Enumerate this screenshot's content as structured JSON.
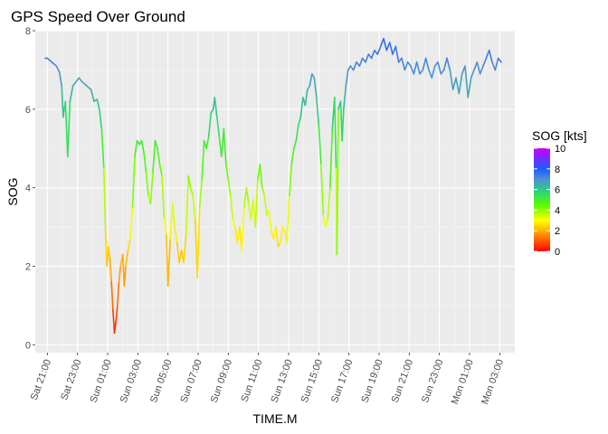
{
  "chart_data": {
    "type": "line",
    "title": "GPS Speed Over Ground",
    "xlabel": "TIME.M",
    "ylabel": "SOG",
    "x_unit": "hours",
    "xlim": [
      -0.8,
      31.0
    ],
    "ylim": [
      -0.2,
      8.0
    ],
    "y_ticks": [
      0,
      2,
      4,
      6,
      8
    ],
    "x_ticks": [
      {
        "h": 0,
        "label": "Sat 21:00"
      },
      {
        "h": 2,
        "label": "Sat 23:00"
      },
      {
        "h": 4,
        "label": "Sun 01:00"
      },
      {
        "h": 6,
        "label": "Sun 03:00"
      },
      {
        "h": 8,
        "label": "Sun 05:00"
      },
      {
        "h": 10,
        "label": "Sun 07:00"
      },
      {
        "h": 12,
        "label": "Sun 09:00"
      },
      {
        "h": 14,
        "label": "Sun 11:00"
      },
      {
        "h": 16,
        "label": "Sun 13:00"
      },
      {
        "h": 18,
        "label": "Sun 15:00"
      },
      {
        "h": 20,
        "label": "Sun 17:00"
      },
      {
        "h": 22,
        "label": "Sun 19:00"
      },
      {
        "h": 24,
        "label": "Sun 21:00"
      },
      {
        "h": 26,
        "label": "Sun 23:00"
      },
      {
        "h": 28,
        "label": "Mon 01:00"
      },
      {
        "h": 30,
        "label": "Mon 03:00"
      }
    ],
    "grid": true,
    "background": "#ebebeb",
    "series": [
      {
        "points": [
          [
            -0.15,
            7.3
          ],
          [
            0.0,
            7.3
          ],
          [
            0.3,
            7.2
          ],
          [
            0.6,
            7.1
          ],
          [
            0.8,
            6.95
          ],
          [
            0.95,
            6.6
          ],
          [
            1.05,
            5.8
          ],
          [
            1.2,
            6.2
          ],
          [
            1.35,
            4.8
          ],
          [
            1.5,
            6.2
          ],
          [
            1.7,
            6.6
          ],
          [
            1.9,
            6.7
          ],
          [
            2.1,
            6.8
          ],
          [
            2.3,
            6.7
          ],
          [
            2.6,
            6.6
          ],
          [
            2.9,
            6.5
          ],
          [
            3.1,
            6.2
          ],
          [
            3.3,
            6.25
          ],
          [
            3.45,
            6.0
          ],
          [
            3.6,
            5.5
          ],
          [
            3.75,
            4.5
          ],
          [
            3.85,
            3.0
          ],
          [
            3.95,
            2.0
          ],
          [
            4.05,
            2.5
          ],
          [
            4.15,
            2.2
          ],
          [
            4.25,
            1.6
          ],
          [
            4.35,
            0.9
          ],
          [
            4.45,
            0.3
          ],
          [
            4.55,
            0.6
          ],
          [
            4.65,
            1.0
          ],
          [
            4.75,
            1.6
          ],
          [
            4.85,
            2.0
          ],
          [
            5.0,
            2.3
          ],
          [
            5.1,
            1.5
          ],
          [
            5.2,
            2.0
          ],
          [
            5.35,
            2.4
          ],
          [
            5.5,
            2.7
          ],
          [
            5.65,
            3.5
          ],
          [
            5.8,
            4.8
          ],
          [
            5.95,
            5.2
          ],
          [
            6.1,
            5.1
          ],
          [
            6.25,
            5.2
          ],
          [
            6.4,
            4.9
          ],
          [
            6.55,
            4.4
          ],
          [
            6.7,
            3.8
          ],
          [
            6.85,
            3.6
          ],
          [
            7.0,
            4.4
          ],
          [
            7.15,
            5.2
          ],
          [
            7.3,
            5.0
          ],
          [
            7.45,
            4.6
          ],
          [
            7.6,
            4.3
          ],
          [
            7.75,
            3.2
          ],
          [
            7.9,
            2.8
          ],
          [
            8.0,
            1.5
          ],
          [
            8.15,
            2.7
          ],
          [
            8.3,
            3.6
          ],
          [
            8.45,
            3.0
          ],
          [
            8.6,
            2.6
          ],
          [
            8.75,
            2.1
          ],
          [
            8.9,
            2.4
          ],
          [
            9.05,
            2.1
          ],
          [
            9.2,
            2.8
          ],
          [
            9.35,
            4.3
          ],
          [
            9.5,
            4.0
          ],
          [
            9.65,
            3.8
          ],
          [
            9.8,
            3.2
          ],
          [
            9.95,
            1.7
          ],
          [
            10.1,
            3.5
          ],
          [
            10.25,
            4.2
          ],
          [
            10.4,
            5.2
          ],
          [
            10.55,
            5.0
          ],
          [
            10.7,
            5.3
          ],
          [
            10.85,
            5.9
          ],
          [
            11.0,
            6.0
          ],
          [
            11.1,
            6.3
          ],
          [
            11.25,
            5.8
          ],
          [
            11.4,
            5.3
          ],
          [
            11.55,
            4.8
          ],
          [
            11.7,
            5.5
          ],
          [
            11.85,
            4.6
          ],
          [
            12.0,
            4.2
          ],
          [
            12.15,
            3.8
          ],
          [
            12.3,
            3.2
          ],
          [
            12.45,
            3.0
          ],
          [
            12.6,
            2.6
          ],
          [
            12.75,
            3.0
          ],
          [
            12.9,
            2.4
          ],
          [
            13.05,
            3.5
          ],
          [
            13.2,
            4.0
          ],
          [
            13.35,
            3.6
          ],
          [
            13.5,
            3.2
          ],
          [
            13.65,
            3.7
          ],
          [
            13.8,
            3.0
          ],
          [
            13.95,
            4.2
          ],
          [
            14.1,
            4.6
          ],
          [
            14.25,
            4.0
          ],
          [
            14.4,
            3.8
          ],
          [
            14.55,
            3.3
          ],
          [
            14.7,
            3.4
          ],
          [
            14.85,
            2.9
          ],
          [
            15.0,
            2.7
          ],
          [
            15.15,
            3.0
          ],
          [
            15.3,
            2.5
          ],
          [
            15.45,
            2.6
          ],
          [
            15.6,
            3.0
          ],
          [
            15.75,
            2.9
          ],
          [
            15.9,
            2.6
          ],
          [
            16.05,
            3.8
          ],
          [
            16.2,
            4.6
          ],
          [
            16.35,
            5.0
          ],
          [
            16.5,
            5.2
          ],
          [
            16.65,
            5.6
          ],
          [
            16.8,
            5.8
          ],
          [
            16.95,
            6.3
          ],
          [
            17.1,
            6.1
          ],
          [
            17.25,
            6.5
          ],
          [
            17.4,
            6.6
          ],
          [
            17.55,
            6.9
          ],
          [
            17.7,
            6.8
          ],
          [
            17.85,
            6.3
          ],
          [
            18.0,
            5.6
          ],
          [
            18.15,
            4.6
          ],
          [
            18.3,
            3.3
          ],
          [
            18.45,
            3.0
          ],
          [
            18.6,
            3.2
          ],
          [
            18.75,
            4.0
          ],
          [
            18.9,
            5.5
          ],
          [
            19.05,
            6.3
          ],
          [
            19.15,
            4.5
          ],
          [
            19.2,
            2.3
          ],
          [
            19.3,
            6.0
          ],
          [
            19.45,
            6.2
          ],
          [
            19.55,
            5.2
          ],
          [
            19.65,
            6.0
          ],
          [
            19.8,
            6.6
          ],
          [
            19.95,
            7.0
          ],
          [
            20.1,
            7.1
          ],
          [
            20.3,
            7.0
          ],
          [
            20.5,
            7.2
          ],
          [
            20.7,
            7.1
          ],
          [
            20.9,
            7.3
          ],
          [
            21.1,
            7.2
          ],
          [
            21.3,
            7.4
          ],
          [
            21.5,
            7.3
          ],
          [
            21.7,
            7.5
          ],
          [
            21.9,
            7.4
          ],
          [
            22.1,
            7.6
          ],
          [
            22.3,
            7.8
          ],
          [
            22.5,
            7.5
          ],
          [
            22.7,
            7.7
          ],
          [
            22.9,
            7.4
          ],
          [
            23.1,
            7.6
          ],
          [
            23.3,
            7.2
          ],
          [
            23.5,
            7.3
          ],
          [
            23.7,
            7.0
          ],
          [
            23.9,
            7.2
          ],
          [
            24.1,
            7.1
          ],
          [
            24.3,
            6.9
          ],
          [
            24.5,
            7.2
          ],
          [
            24.7,
            6.9
          ],
          [
            24.9,
            7.0
          ],
          [
            25.1,
            7.3
          ],
          [
            25.3,
            7.0
          ],
          [
            25.5,
            6.8
          ],
          [
            25.7,
            7.1
          ],
          [
            25.9,
            7.2
          ],
          [
            26.1,
            6.9
          ],
          [
            26.3,
            7.0
          ],
          [
            26.5,
            7.3
          ],
          [
            26.7,
            7.0
          ],
          [
            26.9,
            6.5
          ],
          [
            27.1,
            6.8
          ],
          [
            27.3,
            6.4
          ],
          [
            27.5,
            6.9
          ],
          [
            27.7,
            7.1
          ],
          [
            27.9,
            6.3
          ],
          [
            28.1,
            6.8
          ],
          [
            28.3,
            7.0
          ],
          [
            28.5,
            7.2
          ],
          [
            28.7,
            6.9
          ],
          [
            28.9,
            7.1
          ],
          [
            29.1,
            7.3
          ],
          [
            29.3,
            7.5
          ],
          [
            29.5,
            7.2
          ],
          [
            29.7,
            7.0
          ],
          [
            29.9,
            7.3
          ],
          [
            30.1,
            7.2
          ]
        ]
      }
    ],
    "legend": {
      "title": "SOG [kts]",
      "placement": "right",
      "labels": [
        "10",
        "8",
        "6",
        "4",
        "2",
        "0"
      ],
      "range": [
        0,
        10
      ],
      "gradient": [
        {
          "v": 0,
          "color": "#ff0000"
        },
        {
          "v": 2,
          "color": "#ffb000"
        },
        {
          "v": 3,
          "color": "#ffff00"
        },
        {
          "v": 4.5,
          "color": "#55ff00"
        },
        {
          "v": 5.8,
          "color": "#2bd37a"
        },
        {
          "v": 7,
          "color": "#4f8fd6"
        },
        {
          "v": 8,
          "color": "#1a5cff"
        },
        {
          "v": 10,
          "color": "#cc00ff"
        }
      ]
    }
  }
}
